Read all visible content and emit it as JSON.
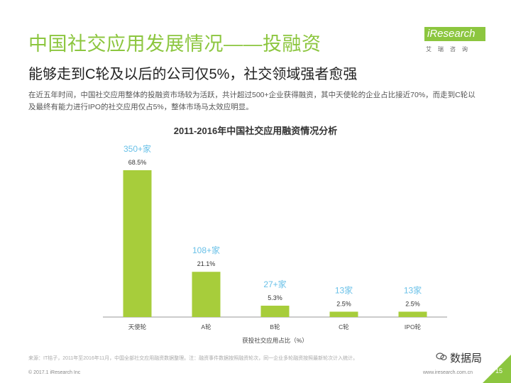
{
  "header": {
    "title": "中国社交应用发展情况——投融资",
    "subtitle": "能够走到C轮及以后的公司仅5%，社交领域强者愈强",
    "description": "在近五年时间，中国社交应用整体的投融资市场较为活跃，共计超过500+企业获得融资，其中天使轮的企业占比接近70%，而走到C轮以及最终有能力进行IPO的社交应用仅占5%，整体市场马太效应明显。"
  },
  "logo": {
    "brand": "iResearch",
    "sub": "艾瑞咨询"
  },
  "chart_data": {
    "type": "bar",
    "title": "2011-2016年中国社交应用融资情况分析",
    "xlabel": "获投社交应用占比（%）",
    "ylabel": "",
    "categories": [
      "天使轮",
      "A轮",
      "B轮",
      "C轮",
      "IPO轮"
    ],
    "values": [
      68.5,
      21.1,
      5.3,
      2.5,
      2.5
    ],
    "count_labels": [
      "350+家",
      "108+家",
      "27+家",
      "13家",
      "13家"
    ],
    "pct_labels": [
      "68.5%",
      "21.1%",
      "5.3%",
      "2.5%",
      "2.5%"
    ],
    "ylim": [
      0,
      70
    ],
    "grid": false,
    "colors": {
      "bar": "#a7cd3b",
      "count_label": "#6ac1e8",
      "axis": "#999999"
    }
  },
  "footer": {
    "source": "来源：IT桔子，2011年至2016年11月，中国全部社交应用融资数据整理。注：融资事件数据按照融资轮次，同一企业多轮融资按照最新轮次计入统计。",
    "copyright": "© 2017.1 iResearch Inc",
    "site": "www.iresearch.com.cn",
    "watermark": "数据局",
    "page_number": "15"
  }
}
